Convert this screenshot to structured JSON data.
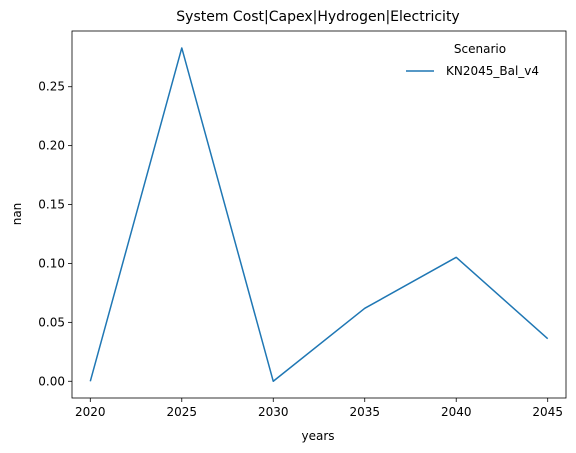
{
  "chart_data": {
    "type": "line",
    "title": "System Cost|Capex|Hydrogen|Electricity",
    "xlabel": "years",
    "ylabel": "nan",
    "x": [
      2020,
      2025,
      2030,
      2035,
      2040,
      2045
    ],
    "xticks": [
      "2020",
      "2025",
      "2030",
      "2035",
      "2040",
      "2045"
    ],
    "yticks": [
      "0.00",
      "0.05",
      "0.10",
      "0.15",
      "0.20",
      "0.25"
    ],
    "xlim": [
      2019.0,
      2046.0
    ],
    "ylim": [
      -0.0142,
      0.2973
    ],
    "series": [
      {
        "name": "KN2045_Bal_v4",
        "color": "#1f77b4",
        "values": [
          0.0,
          0.2829,
          0.0,
          0.0619,
          0.1052,
          0.0361
        ]
      }
    ],
    "legend": {
      "title": "Scenario",
      "position": "top-right"
    },
    "grid": false
  }
}
